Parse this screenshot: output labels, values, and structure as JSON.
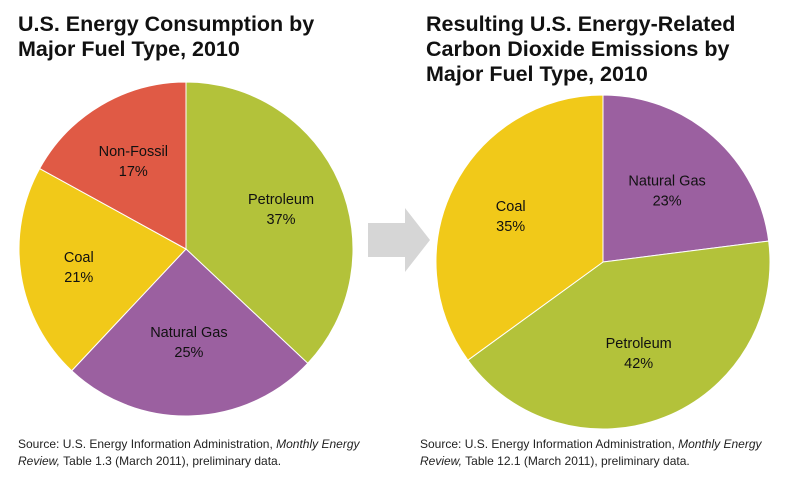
{
  "chart_data": [
    {
      "type": "pie",
      "title": "U.S. Energy Consumption by\nMajor Fuel Type, 2010",
      "slices": [
        {
          "label": "Petroleum",
          "value": 37,
          "value_label": "37%",
          "color": "#b3c23a"
        },
        {
          "label": "Natural Gas",
          "value": 25,
          "value_label": "25%",
          "color": "#9b60a0"
        },
        {
          "label": "Coal",
          "value": 21,
          "value_label": "21%",
          "color": "#f1c919"
        },
        {
          "label": "Non-Fossil",
          "value": 17,
          "value_label": "17%",
          "color": "#e05a45"
        }
      ],
      "source": {
        "prefix": "Source: U.S. Energy Information Administration, ",
        "italic": "Monthly Energy Review,",
        "suffix": " Table 1.3 (March 2011), preliminary data."
      }
    },
    {
      "type": "pie",
      "title": "Resulting U.S. Energy-Related\nCarbon Dioxide Emissions by\nMajor Fuel Type, 2010",
      "slices": [
        {
          "label": "Natural Gas",
          "value": 23,
          "value_label": "23%",
          "color": "#9b60a0"
        },
        {
          "label": "Petroleum",
          "value": 42,
          "value_label": "42%",
          "color": "#b3c23a"
        },
        {
          "label": "Coal",
          "value": 35,
          "value_label": "35%",
          "color": "#f1c919"
        }
      ],
      "source": {
        "prefix": "Source: U.S. Energy Information Administration, ",
        "italic": "Monthly Energy Review,",
        "suffix": " Table 12.1 (March 2011), preliminary data."
      }
    }
  ]
}
